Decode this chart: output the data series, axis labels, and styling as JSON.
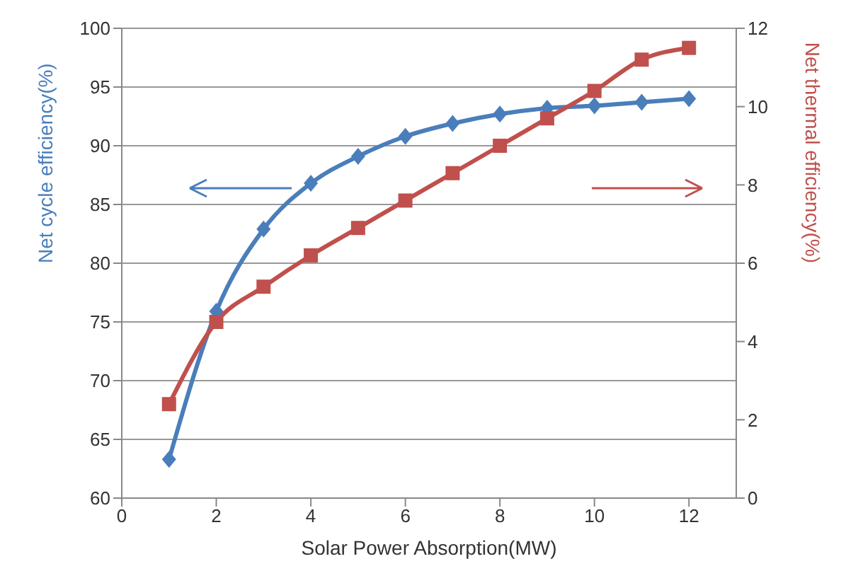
{
  "chart_data": {
    "type": "line",
    "xlabel": "Solar Power Absorption(MW)",
    "ylabel": "Net cycle efficiency(%)",
    "y2label": "Net thermal efficiency(%)",
    "x": [
      1,
      2,
      3,
      4,
      5,
      6,
      7,
      8,
      9,
      10,
      11,
      12
    ],
    "series": [
      {
        "color": "#4a7ebb",
        "marker": "diamond",
        "values": [
          63.3,
          75.9,
          82.9,
          86.8,
          89.1,
          90.8,
          91.9,
          92.7,
          93.2,
          93.4,
          93.7,
          94.0
        ]
      },
      {
        "color": "#c0504d",
        "marker": "square",
        "axis": "y2",
        "values": [
          2.4,
          4.5,
          5.4,
          6.2,
          6.9,
          7.6,
          8.3,
          9.0,
          9.7,
          10.4,
          11.2,
          11.5
        ]
      }
    ],
    "xlim": [
      0,
      13
    ],
    "xticks": [
      0,
      2,
      4,
      6,
      8,
      10,
      12
    ],
    "ylim": [
      60,
      100
    ],
    "yticks": [
      60,
      65,
      70,
      75,
      80,
      85,
      90,
      95,
      100
    ],
    "y2lim": [
      0,
      12
    ],
    "y2ticks": [
      0,
      2,
      4,
      6,
      8,
      10,
      12
    ],
    "grid": "y"
  }
}
